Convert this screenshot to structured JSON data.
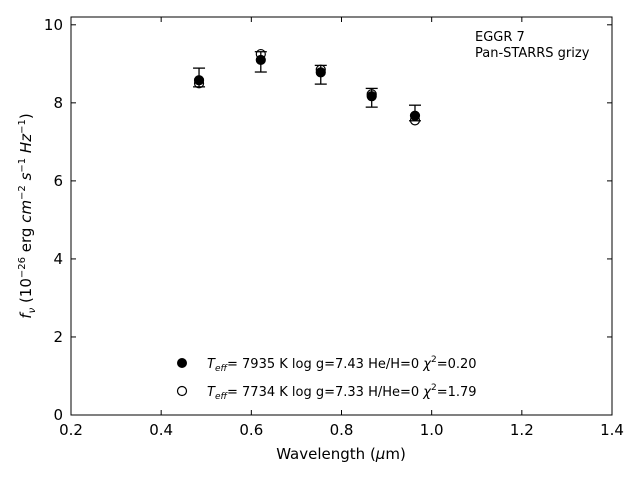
{
  "chart_data": {
    "type": "scatter",
    "xlabel": "Wavelength (μm)",
    "ylabel": "f_ν (10^-26 erg cm^-2 s^-1 Hz^-1)",
    "xlim": [
      0.2,
      1.4
    ],
    "ylim": [
      0,
      10.2
    ],
    "xticks": [
      "0.2",
      "0.4",
      "0.6",
      "0.8",
      "1.0",
      "1.2",
      "1.4"
    ],
    "yticks": [
      "0",
      "2",
      "4",
      "6",
      "8",
      "10"
    ],
    "grid": false,
    "legend_position": "bottom-center",
    "annotations": [
      "EGGR 7",
      "Pan-STARRS grizy"
    ],
    "observed": {
      "x": [
        0.484,
        0.621,
        0.754,
        0.867,
        0.963
      ],
      "y": [
        8.65,
        9.05,
        8.72,
        8.13,
        7.74
      ],
      "yerr": [
        0.24,
        0.26,
        0.24,
        0.24,
        0.2
      ]
    },
    "series": [
      {
        "name": "Teff= 7935 K log g=7.43 He/H=0 χ2=0.20",
        "marker": "filled-circle",
        "x": [
          0.484,
          0.621,
          0.754,
          0.867,
          0.963
        ],
        "y": [
          8.58,
          9.1,
          8.78,
          8.17,
          7.67
        ]
      },
      {
        "name": "Teff= 7734 K log g=7.33 H/He=0 χ2=1.79",
        "marker": "open-circle",
        "x": [
          0.484,
          0.621,
          0.754,
          0.867,
          0.963
        ],
        "y": [
          8.5,
          9.25,
          8.85,
          8.22,
          7.55
        ]
      }
    ]
  }
}
